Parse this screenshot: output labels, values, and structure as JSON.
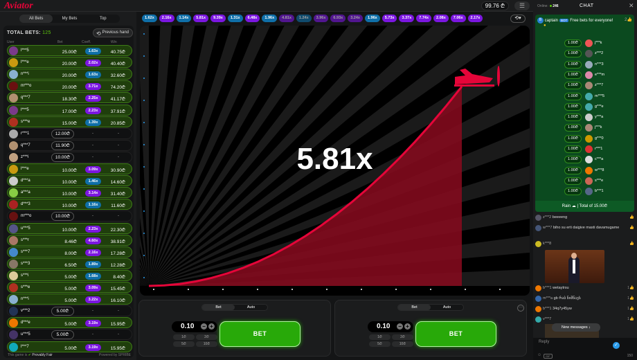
{
  "header": {
    "logo": "Aviator",
    "balance": "99.76 ₾",
    "menu_icon": "menu-icon"
  },
  "bets_tabs": [
    "All Bets",
    "My Bets",
    "Top"
  ],
  "bets": {
    "total_label": "TOTAL BETS:",
    "total_value": "125",
    "previous_hand": "Previous hand",
    "columns": [
      "User",
      "Bet",
      "Coeff.",
      "Win"
    ],
    "rows": [
      {
        "user": "l***5",
        "bet": "25.00₾",
        "coeff": "1.63x",
        "win": "40.75₾",
        "won": true
      },
      {
        "user": "l***e",
        "bet": "20.00₾",
        "coeff": "2.02x",
        "win": "40.40₾",
        "won": true
      },
      {
        "user": "n***i",
        "bet": "20.00₾",
        "coeff": "1.63x",
        "win": "32.60₾",
        "won": true
      },
      {
        "user": "m***o",
        "bet": "20.00₾",
        "coeff": "3.71x",
        "win": "74.20₾",
        "won": true
      },
      {
        "user": "q***7",
        "bet": "18.30₾",
        "coeff": "2.25x",
        "win": "41.17₾",
        "won": true
      },
      {
        "user": "l***5",
        "bet": "17.00₾",
        "coeff": "2.23x",
        "win": "37.91₾",
        "won": true
      },
      {
        "user": "s***e",
        "bet": "15.00₾",
        "coeff": "1.39x",
        "win": "20.85₾",
        "won": true
      },
      {
        "user": "r***1",
        "bet": "12.00₾",
        "coeff": "-",
        "win": "-",
        "won": false
      },
      {
        "user": "q***7",
        "bet": "11.90₾",
        "coeff": "-",
        "win": "-",
        "won": false
      },
      {
        "user": "z***i",
        "bet": "10.00₾",
        "coeff": "-",
        "win": "-",
        "won": false
      },
      {
        "user": "l***e",
        "bet": "10.00₾",
        "coeff": "3.09x",
        "win": "30.90₾",
        "won": true
      },
      {
        "user": "d***a",
        "bet": "10.00₾",
        "coeff": "1.46x",
        "win": "14.60₾",
        "won": true
      },
      {
        "user": "a***a",
        "bet": "10.00₾",
        "coeff": "3.14x",
        "win": "31.40₾",
        "won": true
      },
      {
        "user": "d***3",
        "bet": "10.00₾",
        "coeff": "1.16x",
        "win": "11.60₾",
        "won": true
      },
      {
        "user": "m***o",
        "bet": "10.00₾",
        "coeff": "-",
        "win": "-",
        "won": false
      },
      {
        "user": "u***5",
        "bet": "10.00₾",
        "coeff": "2.23x",
        "win": "22.30₾",
        "won": true
      },
      {
        "user": "s***r",
        "bet": "8.46₾",
        "coeff": "4.60x",
        "win": "38.91₾",
        "won": true
      },
      {
        "user": "s***7",
        "bet": "8.00₾",
        "coeff": "2.16x",
        "win": "17.28₾",
        "won": true
      },
      {
        "user": "s***3",
        "bet": "6.50₾",
        "coeff": "1.89x",
        "win": "12.28₾",
        "won": true
      },
      {
        "user": "s***i",
        "bet": "5.00₾",
        "coeff": "1.68x",
        "win": "8.40₾",
        "won": true
      },
      {
        "user": "s***e",
        "bet": "5.00₾",
        "coeff": "3.09x",
        "win": "15.45₾",
        "won": true
      },
      {
        "user": "n***i",
        "bet": "5.00₾",
        "coeff": "3.22x",
        "win": "16.10₾",
        "won": true
      },
      {
        "user": "v***2",
        "bet": "5.00₾",
        "coeff": "-",
        "win": "-",
        "won": false
      },
      {
        "user": "d***e",
        "bet": "5.00₾",
        "coeff": "3.19x",
        "win": "15.95₾",
        "won": true
      },
      {
        "user": "u***5",
        "bet": "5.00₾",
        "coeff": "-",
        "win": "-",
        "won": false
      },
      {
        "user": "l***7",
        "bet": "5.00₾",
        "coeff": "3.19x",
        "win": "15.95₾",
        "won": true
      }
    ],
    "footer_prefix": "This game is",
    "footer_fair": "Provably Fair",
    "powered_by": "Powered by SPRIBE"
  },
  "colors": {
    "blue": "#0f6fa8",
    "purple": "#7b16e0",
    "pink": "#c017b4",
    "green": "#28a909",
    "red": "#e50539"
  },
  "history": [
    "1.62x",
    "2.16x",
    "1.14x",
    "5.81x",
    "9.39x",
    "1.31x",
    "6.48x",
    "1.96x",
    "4.81x",
    "1.24x",
    "3.96x",
    "6.93x",
    "3.24x",
    "1.96x",
    "5.73x",
    "3.37x",
    "7.74x",
    "2.08x",
    "7.06x",
    "2.17x"
  ],
  "game": {
    "multiplier": "5.81x"
  },
  "panels": [
    {
      "tabs": [
        "Bet",
        "Auto"
      ],
      "amount": "0.10",
      "quick": [
        "1₾",
        "2₾",
        "5₾",
        "10₾"
      ],
      "button": "BET"
    },
    {
      "tabs": [
        "Bet",
        "Auto"
      ],
      "amount": "0.10",
      "quick": [
        "1₾",
        "2₾",
        "5₾",
        "10₾"
      ],
      "button": "BET"
    }
  ],
  "chat": {
    "online_label": "Online:",
    "online_count": "246",
    "title": "CHAT",
    "rain": {
      "user": "captain",
      "badge": "BOT",
      "text": "Free bets for everyone!",
      "count": "2",
      "amount": "1.00₾",
      "recipients": [
        "j***k",
        "z***2",
        "n***3",
        "e***m",
        "z***7",
        "m***5",
        "g***e",
        "y***a",
        "j***k",
        "g***0",
        "r***1",
        "c***a",
        "w***8",
        "s***e",
        "b***1"
      ],
      "footer": "Rain ☁ | Total of 15.00₾"
    },
    "messages": [
      {
        "user": "z***2",
        "text": "beeeeng",
        "likes": ""
      },
      {
        "user": "w***7",
        "text": "biho su erti daigive masti davamugame",
        "likes": ""
      },
      {
        "user": "k***8",
        "text": "",
        "likes": ""
      },
      {
        "user": "b***1",
        "text": "wetaytrsu",
        "likes": "1"
      },
      {
        "user": "m***a",
        "text": "gb რაბ ნიშნავს",
        "likes": "1"
      },
      {
        "user": "b***1",
        "text": "34q7y45yw",
        "likes": "1"
      },
      {
        "user": "v***7",
        "text": "",
        "likes": "1"
      }
    ],
    "new_messages": "New messages ↓",
    "reply_placeholder": "Reply",
    "gif_label": "GIF",
    "char_count": "150"
  }
}
